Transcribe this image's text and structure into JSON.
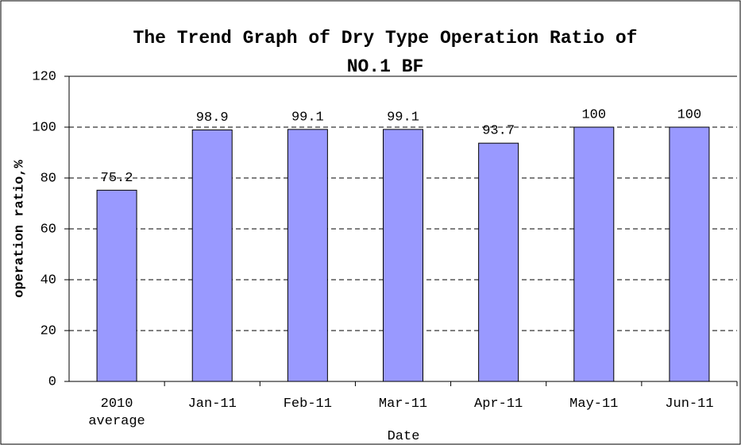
{
  "chart_data": {
    "type": "bar",
    "title": "The Trend Graph of Dry Type Operation Ratio of NO.1 BF",
    "x_label": "Date",
    "y_label": "operation ratio,%",
    "categories": [
      "2010 average",
      "Jan-11",
      "Feb-11",
      "Mar-11",
      "Apr-11",
      "May-11",
      "Jun-11"
    ],
    "values": [
      75.2,
      98.9,
      99.1,
      99.1,
      93.7,
      100,
      100
    ],
    "color": "#9999ff",
    "ylim": [
      0,
      120
    ],
    "yticks": [
      0,
      20,
      40,
      60,
      80,
      100,
      120
    ],
    "grid": true
  }
}
